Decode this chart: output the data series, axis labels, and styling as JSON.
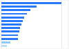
{
  "values": [
    100,
    58,
    48,
    42,
    38,
    35,
    33,
    31,
    30,
    28,
    27,
    15,
    9
  ],
  "bar_colors": [
    "#2979ff",
    "#2979ff",
    "#2979ff",
    "#2979ff",
    "#2979ff",
    "#2979ff",
    "#2979ff",
    "#2979ff",
    "#2979ff",
    "#2979ff",
    "#2979ff",
    "#90caf9",
    "#bbdefb"
  ],
  "background_color": "#f5f5f5",
  "plot_bg": "#ffffff",
  "xlim": [
    0,
    110
  ],
  "grid_color": "#e0e0e0"
}
